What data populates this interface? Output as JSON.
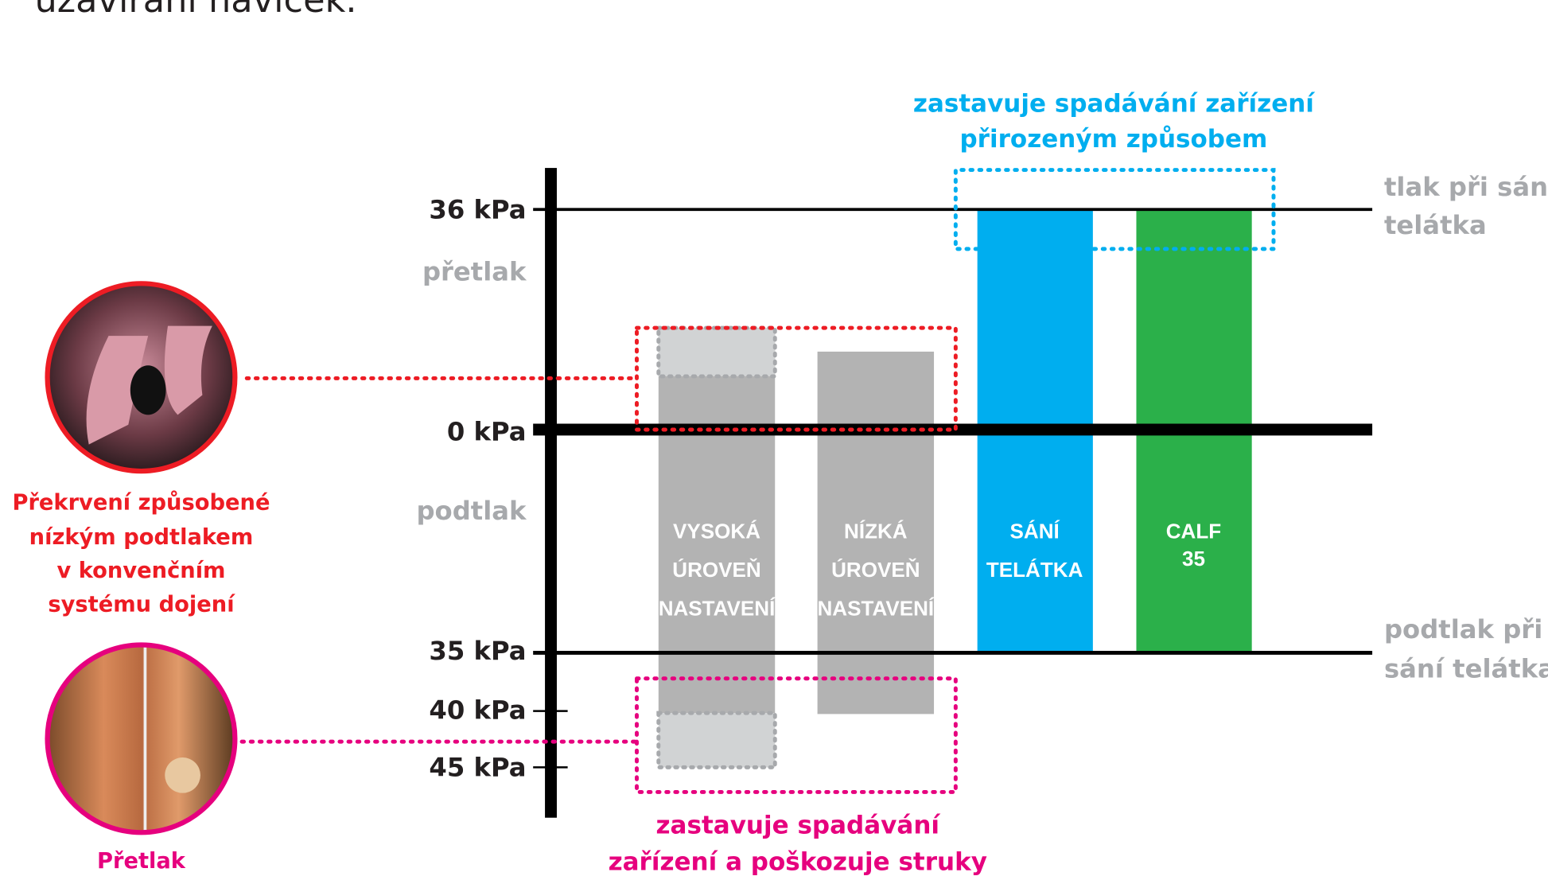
{
  "intro": "uzavírání náviček.",
  "axis": {
    "labels": [
      "36 kPa",
      "0 kPa",
      "35 kPa",
      "40 kPa",
      "45 kPa"
    ],
    "zones": [
      "přetlak",
      "podtlak"
    ]
  },
  "bars": [
    {
      "lines": [
        "VYSOKÁ",
        "ÚROVEŇ",
        "NASTAVENÍ"
      ]
    },
    {
      "lines": [
        "NÍZKÁ",
        "ÚROVEŇ",
        "NASTAVENÍ"
      ]
    },
    {
      "lines": [
        "SÁNÍ",
        "TELÁTKA"
      ]
    },
    {
      "lines": [
        "CALF",
        "35"
      ]
    }
  ],
  "right": {
    "top": [
      "tlak při sání",
      "telátka"
    ],
    "bottom": [
      "podtlak při",
      "sání telátka"
    ]
  },
  "blue_note": [
    "zastavuje spadávání zařízení",
    "přirozeným způsobem"
  ],
  "pink_note": [
    "zastavuje spadávání",
    "zařízení a poškozuje struky"
  ],
  "left_top": [
    "Překrvení způsobené",
    "nízkým podtlakem",
    "v konvenčním",
    "systému dojení"
  ],
  "left_bottom": "Přetlak"
}
